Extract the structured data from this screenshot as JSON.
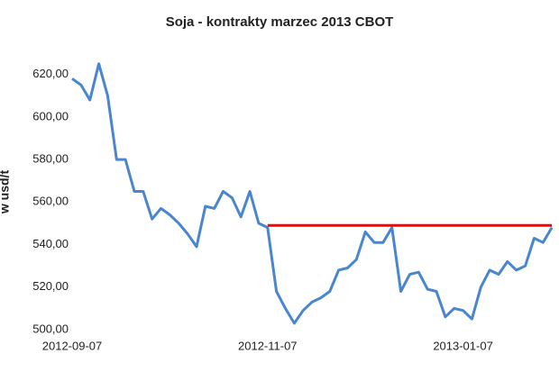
{
  "chart_data": {
    "type": "line",
    "title": "Soja - kontrakty marzec 2013 CBOT",
    "y_label": "w usd/t",
    "categories": [
      "2012-09-07",
      null,
      null,
      null,
      null,
      null,
      null,
      null,
      null,
      null,
      null,
      null,
      null,
      null,
      null,
      null,
      null,
      null,
      null,
      null,
      null,
      null,
      "2012-11-07",
      null,
      null,
      null,
      null,
      null,
      null,
      null,
      null,
      null,
      null,
      null,
      null,
      null,
      null,
      null,
      null,
      null,
      null,
      null,
      null,
      null,
      "2013-01-07",
      null,
      null,
      null,
      null,
      null,
      null,
      null,
      null,
      null,
      null
    ],
    "series": [
      {
        "color": "#4a86d0",
        "values": [
          618,
          615,
          608,
          625,
          610,
          580,
          580,
          565,
          565,
          552,
          557,
          554,
          550,
          545,
          539,
          558,
          557,
          565,
          562,
          553,
          565,
          550,
          548,
          518,
          510,
          503,
          509,
          513,
          515,
          518,
          528,
          529,
          533,
          546,
          541,
          541,
          548,
          518,
          526,
          527,
          519,
          518,
          506,
          510,
          509,
          505,
          520,
          528,
          526,
          532,
          528,
          530,
          543,
          541,
          548
        ]
      },
      {
        "color": "#ff0000",
        "values": [
          null,
          null,
          null,
          null,
          null,
          null,
          null,
          null,
          null,
          null,
          null,
          null,
          null,
          null,
          null,
          null,
          null,
          null,
          null,
          null,
          null,
          null,
          549,
          549,
          549,
          549,
          549,
          549,
          549,
          549,
          549,
          549,
          549,
          549,
          549,
          549,
          549,
          549,
          549,
          549,
          549,
          549,
          549,
          549,
          549,
          549,
          549,
          549,
          549,
          549,
          549,
          549,
          549,
          549,
          549
        ]
      }
    ],
    "ylim": [
      500,
      630
    ],
    "yticks": [
      {
        "value": 500,
        "label": "500,00"
      },
      {
        "value": 520,
        "label": "520,00"
      },
      {
        "value": 540,
        "label": "540,00"
      },
      {
        "value": 560,
        "label": "560,00"
      },
      {
        "value": 580,
        "label": "580,00"
      },
      {
        "value": 600,
        "label": "600,00"
      },
      {
        "value": 620,
        "label": "620,00"
      }
    ],
    "grid": false
  }
}
